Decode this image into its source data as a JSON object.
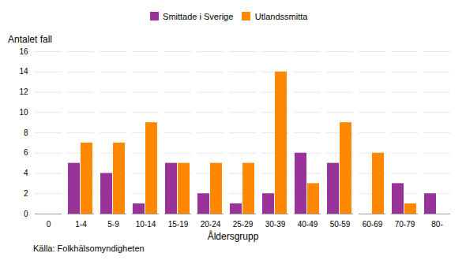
{
  "chart_data": {
    "type": "bar",
    "categories": [
      "0",
      "1-4",
      "5-9",
      "10-14",
      "15-19",
      "20-24",
      "25-29",
      "30-39",
      "40-49",
      "50-59",
      "60-69",
      "70-79",
      "80-"
    ],
    "series": [
      {
        "name": "Smittade i Sverige",
        "color": "#993399",
        "values": [
          0,
          5,
          4,
          1,
          5,
          2,
          1,
          2,
          6,
          5,
          0,
          3,
          2
        ]
      },
      {
        "name": "Utlandssmitta",
        "color": "#FF8800",
        "values": [
          0,
          7,
          7,
          9,
          5,
          5,
          5,
          14,
          3,
          9,
          6,
          1,
          0
        ]
      }
    ],
    "xlabel": "Åldersgrupp",
    "ylabel": "Antalet fall",
    "annotations": [
      "Källa: Folkhälsomyndigheten"
    ],
    "ylim": [
      0,
      16
    ],
    "yticks": [
      0,
      2,
      4,
      6,
      8,
      10,
      12,
      14,
      16
    ],
    "grid": true,
    "legend": "top"
  }
}
